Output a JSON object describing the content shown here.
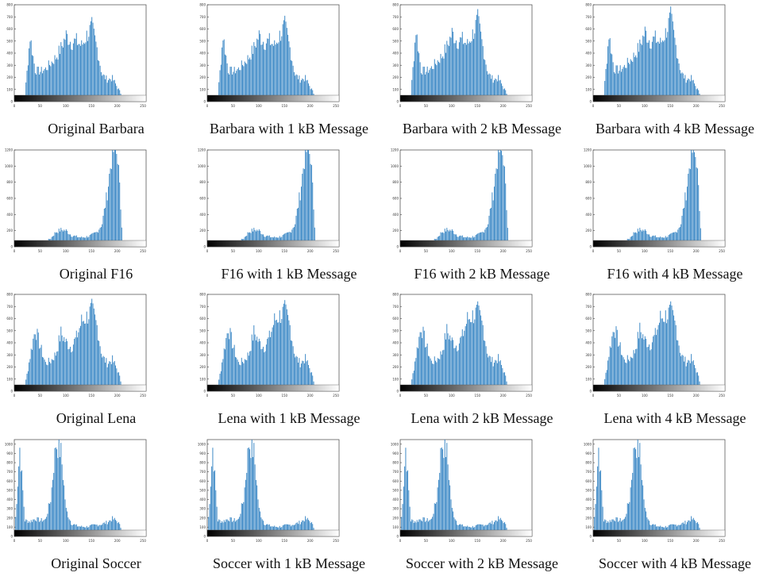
{
  "figure": {
    "bar_color": "#2c7fc1",
    "colorbar": "grayscale black-to-white",
    "rows": [
      {
        "image": "Barbara",
        "ylim": [
          0,
          800
        ],
        "yticks": [
          0,
          100,
          200,
          300,
          400,
          500,
          600,
          700,
          800
        ]
      },
      {
        "image": "F16",
        "ylim": [
          0,
          1200
        ],
        "yticks": [
          0,
          200,
          400,
          600,
          800,
          1000,
          1200
        ]
      },
      {
        "image": "Lena",
        "ylim": [
          0,
          800
        ],
        "yticks": [
          0,
          100,
          200,
          300,
          400,
          500,
          600,
          700,
          800
        ]
      },
      {
        "image": "Soccer",
        "ylim": [
          0,
          1050
        ],
        "yticks": [
          0,
          100,
          200,
          300,
          400,
          500,
          600,
          700,
          800,
          900,
          1000
        ]
      }
    ]
  },
  "chart_data": [
    {
      "type": "bar",
      "caption": "Original Barbara",
      "xlim": [
        0,
        256
      ],
      "ylim": [
        0,
        800
      ],
      "x": [
        0,
        10,
        20,
        30,
        40,
        50,
        60,
        70,
        80,
        90,
        100,
        110,
        120,
        130,
        140,
        150,
        160,
        170,
        180,
        190,
        200,
        210,
        220,
        230,
        240,
        250
      ],
      "values": [
        2,
        8,
        50,
        560,
        270,
        260,
        280,
        330,
        380,
        460,
        570,
        510,
        520,
        480,
        570,
        640,
        460,
        230,
        190,
        200,
        120,
        40,
        5,
        0,
        0,
        0
      ],
      "xticks": [
        0,
        50,
        100,
        150,
        200,
        250
      ]
    },
    {
      "type": "bar",
      "caption": "Barbara with 1 kB Message",
      "xlim": [
        0,
        256
      ],
      "ylim": [
        0,
        800
      ],
      "x": [
        0,
        10,
        20,
        30,
        40,
        50,
        60,
        70,
        80,
        90,
        100,
        110,
        120,
        130,
        140,
        150,
        160,
        170,
        180,
        190,
        200,
        210,
        220,
        230,
        240,
        250
      ],
      "values": [
        2,
        8,
        50,
        570,
        270,
        260,
        280,
        330,
        380,
        460,
        570,
        510,
        520,
        480,
        570,
        650,
        460,
        230,
        190,
        200,
        120,
        40,
        5,
        0,
        0,
        0
      ],
      "xticks": [
        0,
        50,
        100,
        150,
        200,
        250
      ]
    },
    {
      "type": "bar",
      "caption": "Barbara with 2 kB Message",
      "xlim": [
        0,
        256
      ],
      "ylim": [
        0,
        800
      ],
      "x": [
        0,
        10,
        20,
        30,
        40,
        50,
        60,
        70,
        80,
        90,
        100,
        110,
        120,
        130,
        140,
        150,
        160,
        170,
        180,
        190,
        200,
        210,
        220,
        230,
        240,
        250
      ],
      "values": [
        2,
        8,
        60,
        620,
        270,
        260,
        290,
        340,
        390,
        470,
        590,
        520,
        530,
        490,
        580,
        700,
        470,
        240,
        190,
        200,
        120,
        40,
        5,
        0,
        0,
        0
      ],
      "xticks": [
        0,
        50,
        100,
        150,
        200,
        250
      ]
    },
    {
      "type": "bar",
      "caption": "Barbara with 4 kB Message",
      "xlim": [
        0,
        256
      ],
      "ylim": [
        0,
        800
      ],
      "x": [
        0,
        10,
        20,
        30,
        40,
        50,
        60,
        70,
        80,
        90,
        100,
        110,
        120,
        130,
        140,
        150,
        160,
        170,
        180,
        190,
        200,
        210,
        220,
        230,
        240,
        250
      ],
      "values": [
        2,
        8,
        60,
        580,
        280,
        270,
        300,
        350,
        400,
        480,
        600,
        520,
        540,
        500,
        590,
        720,
        480,
        250,
        190,
        200,
        120,
        40,
        5,
        0,
        0,
        0
      ],
      "xticks": [
        0,
        50,
        100,
        150,
        200,
        250
      ]
    },
    {
      "type": "bar",
      "caption": "Original F16",
      "xlim": [
        0,
        256
      ],
      "ylim": [
        0,
        1200
      ],
      "x": [
        0,
        10,
        20,
        30,
        40,
        50,
        60,
        70,
        80,
        90,
        100,
        110,
        120,
        130,
        140,
        150,
        160,
        170,
        180,
        190,
        200,
        210,
        220,
        230,
        240,
        250
      ],
      "values": [
        5,
        20,
        30,
        25,
        20,
        40,
        60,
        110,
        190,
        220,
        210,
        150,
        130,
        120,
        130,
        150,
        190,
        300,
        700,
        1250,
        1200,
        60,
        0,
        0,
        0,
        0
      ],
      "xticks": [
        0,
        50,
        100,
        150,
        200,
        250
      ]
    },
    {
      "type": "bar",
      "caption": "F16 with 1 kB Message",
      "xlim": [
        0,
        256
      ],
      "ylim": [
        0,
        1200
      ],
      "x": [
        0,
        10,
        20,
        30,
        40,
        50,
        60,
        70,
        80,
        90,
        100,
        110,
        120,
        130,
        140,
        150,
        160,
        170,
        180,
        190,
        200,
        210,
        220,
        230,
        240,
        250
      ],
      "values": [
        5,
        20,
        30,
        25,
        20,
        40,
        60,
        110,
        190,
        220,
        210,
        150,
        130,
        120,
        130,
        150,
        190,
        300,
        700,
        1250,
        1200,
        60,
        0,
        0,
        0,
        0
      ],
      "xticks": [
        0,
        50,
        100,
        150,
        200,
        250
      ]
    },
    {
      "type": "bar",
      "caption": "F16 with 2 kB Message",
      "xlim": [
        0,
        256
      ],
      "ylim": [
        0,
        1200
      ],
      "x": [
        0,
        10,
        20,
        30,
        40,
        50,
        60,
        70,
        80,
        90,
        100,
        110,
        120,
        130,
        140,
        150,
        160,
        170,
        180,
        190,
        200,
        210,
        220,
        230,
        240,
        250
      ],
      "values": [
        5,
        20,
        30,
        25,
        20,
        40,
        60,
        110,
        190,
        220,
        210,
        150,
        130,
        120,
        130,
        150,
        190,
        300,
        700,
        1250,
        1180,
        60,
        0,
        0,
        0,
        0
      ],
      "xticks": [
        0,
        50,
        100,
        150,
        200,
        250
      ]
    },
    {
      "type": "bar",
      "caption": "F16 with 4 kB Message",
      "xlim": [
        0,
        256
      ],
      "ylim": [
        0,
        1200
      ],
      "x": [
        0,
        10,
        20,
        30,
        40,
        50,
        60,
        70,
        80,
        90,
        100,
        110,
        120,
        130,
        140,
        150,
        160,
        170,
        180,
        190,
        200,
        210,
        220,
        230,
        240,
        250
      ],
      "values": [
        5,
        20,
        30,
        25,
        20,
        40,
        60,
        110,
        190,
        220,
        210,
        150,
        130,
        120,
        130,
        150,
        190,
        300,
        700,
        1250,
        1150,
        60,
        0,
        0,
        0,
        0
      ],
      "xticks": [
        0,
        50,
        100,
        150,
        200,
        250
      ]
    },
    {
      "type": "bar",
      "caption": "Original Lena",
      "xlim": [
        0,
        256
      ],
      "ylim": [
        0,
        800
      ],
      "x": [
        0,
        10,
        20,
        30,
        40,
        50,
        60,
        70,
        80,
        90,
        100,
        110,
        120,
        130,
        140,
        150,
        160,
        170,
        180,
        190,
        200,
        210,
        220,
        230,
        240,
        250
      ],
      "values": [
        0,
        5,
        40,
        300,
        540,
        380,
        240,
        260,
        320,
        500,
        420,
        380,
        460,
        600,
        640,
        700,
        560,
        300,
        240,
        270,
        180,
        30,
        0,
        0,
        0,
        0
      ],
      "xticks": [
        0,
        50,
        100,
        150,
        200,
        250
      ]
    },
    {
      "type": "bar",
      "caption": "Lena with 1 kB Message",
      "xlim": [
        0,
        256
      ],
      "ylim": [
        0,
        800
      ],
      "x": [
        0,
        10,
        20,
        30,
        40,
        50,
        60,
        70,
        80,
        90,
        100,
        110,
        120,
        130,
        140,
        150,
        160,
        170,
        180,
        190,
        200,
        210,
        220,
        230,
        240,
        250
      ],
      "values": [
        0,
        5,
        40,
        300,
        550,
        380,
        240,
        260,
        320,
        510,
        420,
        380,
        460,
        610,
        650,
        690,
        560,
        300,
        240,
        280,
        180,
        30,
        0,
        0,
        0,
        0
      ],
      "xticks": [
        0,
        50,
        100,
        150,
        200,
        250
      ]
    },
    {
      "type": "bar",
      "caption": "Lena with 2 kB Message",
      "xlim": [
        0,
        256
      ],
      "ylim": [
        0,
        800
      ],
      "x": [
        0,
        10,
        20,
        30,
        40,
        50,
        60,
        70,
        80,
        90,
        100,
        110,
        120,
        130,
        140,
        150,
        160,
        170,
        180,
        190,
        200,
        210,
        220,
        230,
        240,
        250
      ],
      "values": [
        0,
        5,
        40,
        310,
        560,
        390,
        250,
        270,
        330,
        520,
        430,
        390,
        470,
        620,
        650,
        680,
        560,
        300,
        250,
        280,
        180,
        30,
        0,
        0,
        0,
        0
      ],
      "xticks": [
        0,
        50,
        100,
        150,
        200,
        250
      ]
    },
    {
      "type": "bar",
      "caption": "Lena with 4 kB Message",
      "xlim": [
        0,
        256
      ],
      "ylim": [
        0,
        800
      ],
      "x": [
        0,
        10,
        20,
        30,
        40,
        50,
        60,
        70,
        80,
        90,
        100,
        110,
        120,
        130,
        140,
        150,
        160,
        170,
        180,
        190,
        200,
        210,
        220,
        230,
        240,
        250
      ],
      "values": [
        0,
        5,
        40,
        320,
        560,
        400,
        260,
        280,
        340,
        530,
        440,
        400,
        480,
        630,
        650,
        680,
        560,
        310,
        250,
        280,
        180,
        30,
        0,
        0,
        0,
        0
      ],
      "xticks": [
        0,
        50,
        100,
        150,
        200,
        250
      ]
    },
    {
      "type": "bar",
      "caption": "Original Soccer",
      "xlim": [
        0,
        256
      ],
      "ylim": [
        0,
        1050
      ],
      "x": [
        0,
        10,
        20,
        30,
        40,
        50,
        60,
        70,
        80,
        90,
        100,
        110,
        120,
        130,
        140,
        150,
        160,
        170,
        180,
        190,
        200,
        210,
        220,
        230,
        240,
        250
      ],
      "values": [
        20,
        1000,
        180,
        170,
        200,
        180,
        190,
        420,
        1050,
        950,
        300,
        150,
        120,
        110,
        110,
        120,
        130,
        140,
        160,
        200,
        170,
        60,
        10,
        0,
        0,
        0
      ],
      "xticks": [
        0,
        50,
        100,
        150,
        200,
        250
      ]
    },
    {
      "type": "bar",
      "caption": "Soccer with 1 kB Message",
      "xlim": [
        0,
        256
      ],
      "ylim": [
        0,
        1050
      ],
      "x": [
        0,
        10,
        20,
        30,
        40,
        50,
        60,
        70,
        80,
        90,
        100,
        110,
        120,
        130,
        140,
        150,
        160,
        170,
        180,
        190,
        200,
        210,
        220,
        230,
        240,
        250
      ],
      "values": [
        20,
        1000,
        180,
        170,
        200,
        180,
        190,
        420,
        1050,
        950,
        300,
        150,
        120,
        110,
        110,
        120,
        130,
        140,
        160,
        200,
        170,
        60,
        10,
        0,
        0,
        0
      ],
      "xticks": [
        0,
        50,
        100,
        150,
        200,
        250
      ]
    },
    {
      "type": "bar",
      "caption": "Soccer with 2 kB Message",
      "xlim": [
        0,
        256
      ],
      "ylim": [
        0,
        1050
      ],
      "x": [
        0,
        10,
        20,
        30,
        40,
        50,
        60,
        70,
        80,
        90,
        100,
        110,
        120,
        130,
        140,
        150,
        160,
        170,
        180,
        190,
        200,
        210,
        220,
        230,
        240,
        250
      ],
      "values": [
        20,
        1000,
        180,
        170,
        200,
        180,
        190,
        420,
        1050,
        950,
        300,
        150,
        120,
        110,
        110,
        120,
        130,
        140,
        160,
        200,
        170,
        60,
        10,
        0,
        0,
        0
      ],
      "xticks": [
        0,
        50,
        100,
        150,
        200,
        250
      ]
    },
    {
      "type": "bar",
      "caption": "Soccer with 4 kB Message",
      "xlim": [
        0,
        256
      ],
      "ylim": [
        0,
        1050
      ],
      "x": [
        0,
        10,
        20,
        30,
        40,
        50,
        60,
        70,
        80,
        90,
        100,
        110,
        120,
        130,
        140,
        150,
        160,
        170,
        180,
        190,
        200,
        210,
        220,
        230,
        240,
        250
      ],
      "values": [
        20,
        1000,
        180,
        170,
        200,
        180,
        190,
        420,
        1050,
        950,
        300,
        150,
        120,
        110,
        110,
        120,
        130,
        140,
        160,
        200,
        170,
        60,
        10,
        0,
        0,
        0
      ],
      "xticks": [
        0,
        50,
        100,
        150,
        200,
        250
      ]
    }
  ]
}
